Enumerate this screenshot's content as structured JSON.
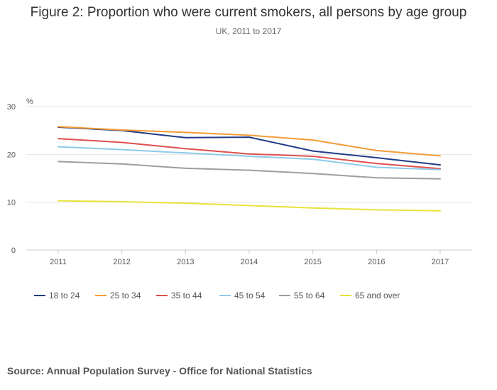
{
  "title": "Figure 2: Proportion who were current smokers, all persons by age group",
  "subtitle": "UK, 2011 to 2017",
  "source": "Source: Annual Population Survey - Office for National Statistics",
  "chart_data": {
    "type": "line",
    "x": [
      "2011",
      "2012",
      "2013",
      "2014",
      "2015",
      "2016",
      "2017"
    ],
    "ylabel": "%",
    "ylim": [
      0,
      30
    ],
    "yticks": [
      0,
      10,
      20,
      30
    ],
    "grid": true,
    "legend_position": "bottom-left",
    "series": [
      {
        "name": "18 to 24",
        "color": "#1f3c88",
        "values": [
          25.7,
          25.0,
          23.5,
          23.6,
          20.7,
          19.3,
          17.8
        ]
      },
      {
        "name": "25 to 34",
        "color": "#f39c36",
        "values": [
          25.8,
          25.1,
          24.6,
          24.0,
          23.0,
          20.8,
          19.7
        ]
      },
      {
        "name": "35 to 44",
        "color": "#e04f4f",
        "values": [
          23.3,
          22.5,
          21.2,
          20.1,
          19.6,
          18.1,
          17.0
        ]
      },
      {
        "name": "45 to 54",
        "color": "#8ccbea",
        "values": [
          21.6,
          21.0,
          20.3,
          19.6,
          19.0,
          17.3,
          16.8
        ]
      },
      {
        "name": "55 to 64",
        "color": "#9e9e9e",
        "values": [
          18.5,
          18.0,
          17.1,
          16.7,
          16.0,
          15.1,
          14.9
        ]
      },
      {
        "name": "65 and over",
        "color": "#e8e33a",
        "values": [
          10.3,
          10.1,
          9.8,
          9.3,
          8.8,
          8.4,
          8.2
        ]
      }
    ]
  }
}
